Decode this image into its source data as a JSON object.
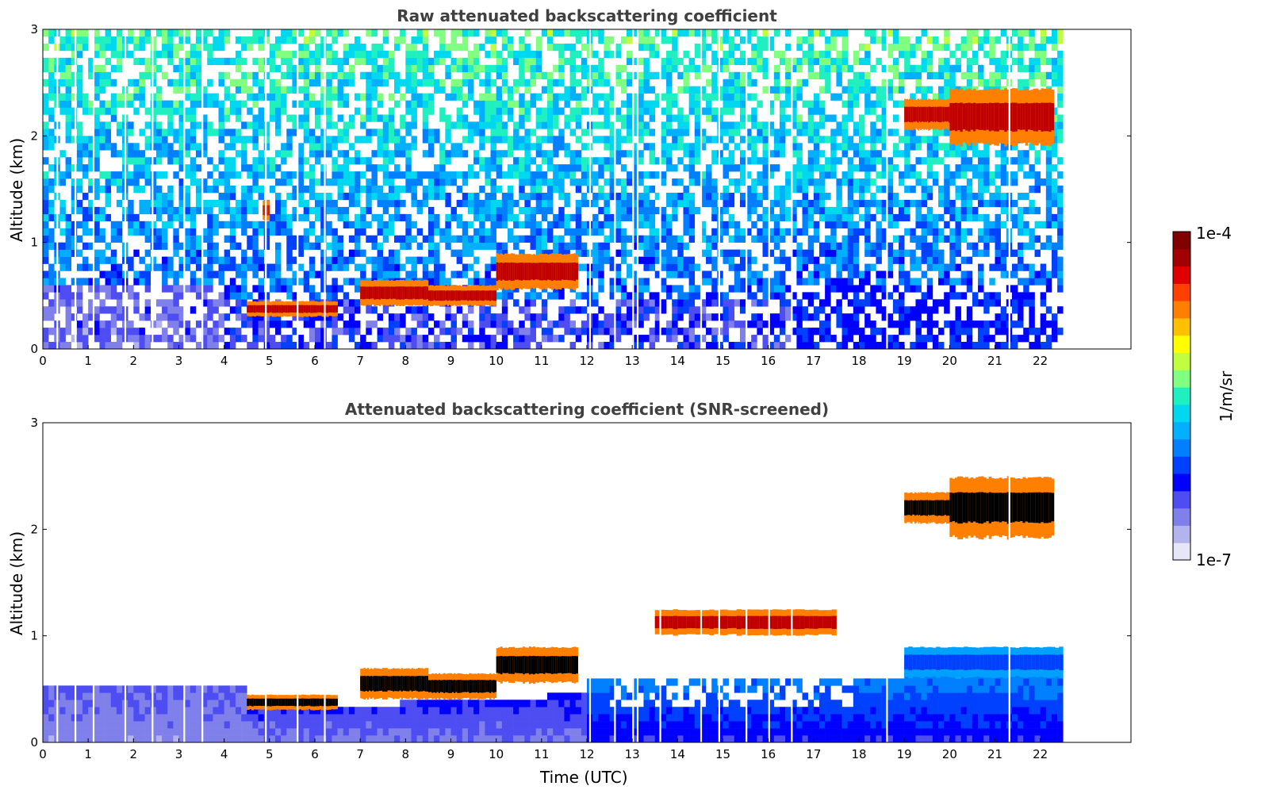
{
  "chart_data": [
    {
      "type": "heatmap",
      "title": "Raw attenuated backscattering coefficient",
      "xlabel": "",
      "ylabel": "Altitude (km)",
      "xlim": [
        0,
        24
      ],
      "ylim": [
        0,
        3
      ],
      "x_ticks": [
        "0",
        "1",
        "2",
        "3",
        "4",
        "5",
        "6",
        "7",
        "8",
        "9",
        "10",
        "11",
        "12",
        "13",
        "14",
        "15",
        "16",
        "17",
        "18",
        "19",
        "20",
        "21",
        "22"
      ],
      "y_ticks": [
        "0",
        "1",
        "2",
        "3"
      ],
      "data_end_time": 22.5,
      "features": [
        {
          "t_start": 4.5,
          "t_end": 6.5,
          "alt_low": 0.3,
          "alt_high": 0.45,
          "level": "high"
        },
        {
          "t_start": 7.0,
          "t_end": 8.5,
          "alt_low": 0.4,
          "alt_high": 0.65,
          "level": "high"
        },
        {
          "t_start": 8.5,
          "t_end": 10.0,
          "alt_low": 0.4,
          "alt_high": 0.6,
          "level": "high"
        },
        {
          "t_start": 10.0,
          "t_end": 11.8,
          "alt_low": 0.55,
          "alt_high": 0.9,
          "level": "high"
        },
        {
          "t_start": 19.0,
          "t_end": 20.0,
          "alt_low": 2.05,
          "alt_high": 2.35,
          "level": "high"
        },
        {
          "t_start": 20.0,
          "t_end": 22.3,
          "alt_low": 1.9,
          "alt_high": 2.45,
          "level": "high"
        },
        {
          "t_start": 4.85,
          "t_end": 5.0,
          "alt_low": 1.2,
          "alt_high": 1.4,
          "level": "high"
        }
      ]
    },
    {
      "type": "heatmap",
      "title": "Attenuated backscattering coefficient (SNR-screened)",
      "xlabel": "Time (UTC)",
      "ylabel": "Altitude (km)",
      "xlim": [
        0,
        24
      ],
      "ylim": [
        0,
        3
      ],
      "x_ticks": [
        "0",
        "1",
        "2",
        "3",
        "4",
        "5",
        "6",
        "7",
        "8",
        "9",
        "10",
        "11",
        "12",
        "13",
        "14",
        "15",
        "16",
        "17",
        "18",
        "19",
        "20",
        "21",
        "22"
      ],
      "y_ticks": [
        "0",
        "1",
        "2",
        "3"
      ],
      "data_end_time": 22.5,
      "features": [
        {
          "t_start": 4.5,
          "t_end": 6.5,
          "alt_low": 0.3,
          "alt_high": 0.45,
          "level": "saturated"
        },
        {
          "t_start": 7.0,
          "t_end": 8.5,
          "alt_low": 0.4,
          "alt_high": 0.7,
          "level": "saturated"
        },
        {
          "t_start": 8.5,
          "t_end": 10.0,
          "alt_low": 0.4,
          "alt_high": 0.65,
          "level": "saturated"
        },
        {
          "t_start": 10.0,
          "t_end": 11.8,
          "alt_low": 0.55,
          "alt_high": 0.9,
          "level": "saturated"
        },
        {
          "t_start": 19.0,
          "t_end": 20.0,
          "alt_low": 2.05,
          "alt_high": 2.35,
          "level": "saturated"
        },
        {
          "t_start": 20.0,
          "t_end": 22.3,
          "alt_low": 1.9,
          "alt_high": 2.5,
          "level": "saturated"
        },
        {
          "t_start": 13.5,
          "t_end": 17.5,
          "alt_low": 1.0,
          "alt_high": 1.25,
          "level": "high"
        },
        {
          "t_start": 19.0,
          "t_end": 22.5,
          "alt_low": 0.6,
          "alt_high": 0.9,
          "level": "medium"
        }
      ]
    }
  ],
  "colorbar": {
    "label": "1/m/sr",
    "max_label": "1e-4",
    "min_label": "1e-7",
    "colors": [
      "#e6e6f7",
      "#b3b3ee",
      "#8080ea",
      "#4d4df2",
      "#0000ff",
      "#0040ff",
      "#0080ff",
      "#00b0ff",
      "#00d8f0",
      "#20f0c0",
      "#80ff80",
      "#c0ff40",
      "#ffff00",
      "#ffc000",
      "#ff8000",
      "#ff4000",
      "#e00000",
      "#a00000",
      "#800000"
    ]
  }
}
